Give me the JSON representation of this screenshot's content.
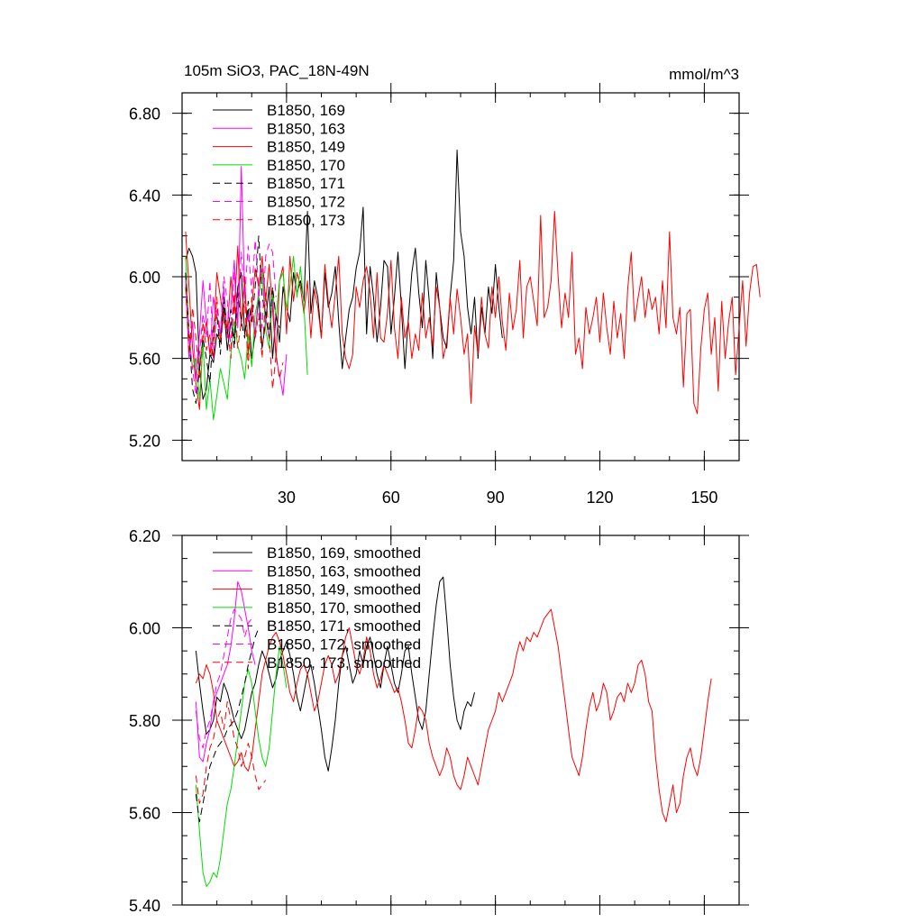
{
  "chart_data": [
    {
      "type": "line",
      "title": "105m SiO3, PAC_18N-49N",
      "units": "mmol/m^3",
      "xlim": [
        0,
        160
      ],
      "ylim": [
        5.1,
        6.9
      ],
      "x_ticks": [
        30,
        60,
        90,
        120,
        150
      ],
      "x_tick_labels": [
        "30",
        "60",
        "90",
        "120",
        "150"
      ],
      "y_ticks": [
        5.2,
        5.6,
        6.0,
        6.4,
        6.8
      ],
      "y_tick_labels": [
        "5.20",
        "5.60",
        "6.00",
        "6.40",
        "6.80"
      ],
      "legend_position": "top-left",
      "series": [
        {
          "name": "B1850, 169",
          "color": "#000000",
          "dash": "solid",
          "x0": 1,
          "values": [
            6.08,
            6.14,
            6.1,
            6.02,
            5.55,
            5.4,
            5.45,
            5.62,
            5.58,
            5.72,
            5.68,
            5.85,
            5.64,
            5.78,
            5.7,
            5.95,
            6.02,
            5.72,
            5.84,
            5.6,
            5.72,
            5.9,
            5.65,
            5.78,
            5.95,
            5.6,
            5.82,
            5.68,
            5.95,
            5.85,
            5.78,
            6.02,
            5.92,
            5.98,
            5.88,
            6.32,
            5.82,
            5.98,
            5.9,
            5.7,
            6.02,
            5.85,
            5.92,
            6.05,
            5.78,
            5.55,
            5.7,
            5.84,
            5.9,
            6.04,
            6.12,
            6.34,
            5.72,
            6.05,
            5.9,
            5.68,
            5.85,
            6.08,
            6.05,
            5.72,
            5.9,
            6.12,
            5.85,
            5.55,
            5.8,
            6.02,
            6.14,
            5.92,
            5.75,
            6.08,
            5.88,
            5.6,
            6.02,
            5.85,
            5.7,
            5.65,
            5.9,
            6.08,
            6.62,
            6.22,
            6.1,
            5.85,
            5.72,
            5.9,
            5.6,
            5.85,
            5.72,
            5.95,
            5.82,
            6.06,
            5.85,
            5.7
          ]
        },
        {
          "name": "B1850, 163",
          "color": "#ff00ff",
          "dash": "solid",
          "x0": 1,
          "values": [
            6.0,
            5.6,
            5.78,
            5.5,
            5.72,
            5.98,
            5.78,
            5.62,
            5.9,
            5.8,
            5.72,
            5.95,
            5.7,
            5.85,
            6.08,
            5.75,
            6.54,
            5.9,
            5.78,
            5.85,
            5.7,
            5.95,
            6.04,
            5.8,
            5.7,
            5.92,
            5.6,
            5.52,
            5.42,
            5.62
          ]
        },
        {
          "name": "B1850, 149",
          "color": "#ff0000",
          "dash": "solid",
          "x0": 1,
          "values": [
            6.22,
            5.95,
            5.65,
            5.48,
            5.35,
            5.7,
            5.78,
            5.62,
            5.7,
            6.02,
            5.9,
            5.78,
            5.74,
            6.0,
            5.82,
            6.15,
            5.76,
            6.0,
            5.62,
            5.85,
            6.04,
            5.95,
            6.1,
            5.88,
            6.06,
            5.84,
            5.6,
            5.98,
            6.05,
            5.72,
            6.1,
            5.88,
            6.02,
            5.95,
            5.82,
            5.98,
            5.7,
            5.94,
            5.85,
            5.7,
            6.06,
            5.88,
            5.75,
            5.92,
            6.1,
            5.72,
            5.6,
            5.55,
            5.62,
            5.95,
            5.85,
            5.98,
            6.05,
            5.92,
            5.7,
            6.02,
            5.7,
            5.68,
            5.82,
            6.08,
            5.75,
            5.6,
            5.9,
            5.7,
            5.78,
            5.6,
            5.72,
            5.64,
            5.92,
            5.7,
            5.8,
            5.66,
            5.95,
            5.85,
            5.6,
            5.68,
            5.9,
            5.72,
            5.94,
            5.8,
            5.62,
            5.72,
            5.38,
            5.76,
            5.62,
            5.9,
            5.72,
            5.65,
            5.95,
            5.8,
            6.0,
            5.78,
            5.64,
            5.92,
            5.74,
            5.84,
            6.08,
            5.7,
            5.95,
            6.0,
            5.88,
            5.76,
            6.3,
            5.8,
            5.85,
            5.98,
            6.32,
            6.0,
            5.75,
            5.92,
            5.8,
            6.12,
            5.62,
            5.7,
            5.55,
            5.85,
            5.72,
            5.8,
            5.9,
            5.68,
            5.92,
            5.75,
            5.62,
            5.88,
            5.7,
            5.82,
            5.6,
            5.94,
            6.12,
            5.78,
            5.9,
            6.0,
            5.8,
            5.94,
            5.84,
            5.9,
            5.72,
            5.98,
            5.75,
            6.22,
            5.8,
            5.72,
            5.85,
            5.46,
            5.82,
            5.84,
            5.38,
            5.33,
            5.65,
            5.84,
            5.92,
            5.62,
            5.8,
            5.44,
            5.88,
            5.6,
            5.78,
            5.9,
            5.52,
            5.75,
            5.98,
            5.66,
            5.92,
            6.05,
            6.06,
            5.9
          ]
        },
        {
          "name": "B1850, 170",
          "color": "#00dd00",
          "dash": "solid",
          "x0": 1,
          "values": [
            6.1,
            5.72,
            5.55,
            5.6,
            5.4,
            5.68,
            5.35,
            5.5,
            5.3,
            5.42,
            5.55,
            5.48,
            5.4,
            5.62,
            5.78,
            5.66,
            5.6,
            5.5,
            5.72,
            5.56,
            5.82,
            5.9,
            6.02,
            5.74,
            5.65,
            5.92,
            5.8,
            5.98,
            6.02,
            5.84,
            5.95,
            6.1,
            5.9,
            6.05,
            5.86,
            5.52
          ]
        },
        {
          "name": "B1850, 171",
          "color": "#000000",
          "dash": "8,5",
          "x0": 1,
          "values": [
            6.02,
            5.72,
            5.45,
            5.38,
            5.55,
            5.7,
            5.6,
            5.48,
            5.75,
            5.82,
            5.62,
            5.9,
            5.72,
            5.84,
            5.65,
            5.92,
            5.78,
            5.7,
            5.88,
            5.78,
            5.95,
            6.2,
            5.9,
            5.82,
            5.7,
            5.95,
            5.8,
            5.75
          ]
        },
        {
          "name": "B1850, 172",
          "color": "#ff00ff",
          "dash": "8,5",
          "x0": 1,
          "values": [
            5.98,
            5.7,
            5.55,
            5.42,
            5.62,
            5.82,
            5.7,
            5.98,
            5.6,
            5.85,
            5.72,
            6.0,
            5.88,
            5.65,
            6.02,
            5.8,
            6.12,
            5.9,
            6.15,
            5.92,
            6.18,
            5.95,
            5.75,
            6.1,
            6.16,
            6.12,
            5.9
          ]
        },
        {
          "name": "B1850, 173",
          "color": "#ff0000",
          "dash": "8,5",
          "x0": 1,
          "values": [
            5.95,
            5.62,
            5.85,
            5.7,
            5.5,
            5.78,
            5.64,
            5.72,
            5.6,
            5.9,
            5.68,
            5.82,
            5.75,
            5.6,
            5.92,
            5.65,
            5.78,
            5.88,
            5.55,
            5.9,
            5.7,
            5.82,
            5.6,
            5.92,
            5.72,
            5.45,
            5.62,
            5.5,
            5.58
          ]
        }
      ]
    },
    {
      "type": "line",
      "title": "",
      "xlim": [
        0,
        160
      ],
      "ylim": [
        5.4,
        6.2
      ],
      "x_ticks": [
        30,
        60,
        90,
        120,
        150
      ],
      "x_tick_labels": [],
      "y_ticks": [
        5.4,
        5.6,
        5.8,
        6.0,
        6.2
      ],
      "y_tick_labels": [
        "5.40",
        "5.60",
        "5.80",
        "6.00",
        "6.20"
      ],
      "legend_position": "top-left",
      "series": [
        {
          "name": "B1850, 169, smoothed",
          "color": "#000000",
          "dash": "solid",
          "x0": 4,
          "values": [
            5.95,
            5.88,
            5.82,
            5.77,
            5.78,
            5.8,
            5.85,
            5.84,
            5.88,
            5.86,
            5.83,
            5.8,
            5.78,
            5.76,
            5.78,
            5.82,
            5.86,
            5.88,
            5.92,
            5.95,
            5.93,
            5.9,
            5.87,
            5.89,
            5.93,
            5.95,
            5.97,
            5.94,
            5.9,
            5.85,
            5.82,
            5.86,
            5.9,
            5.92,
            5.88,
            5.83,
            5.78,
            5.72,
            5.69,
            5.74,
            5.8,
            5.88,
            5.94,
            5.96,
            5.92,
            5.88,
            5.9,
            5.95,
            5.92,
            5.96,
            5.98,
            5.94,
            5.9,
            5.87,
            5.92,
            5.96,
            5.92,
            5.88,
            5.86,
            5.9,
            5.95,
            5.96,
            5.9,
            5.85,
            5.8,
            5.78,
            5.82,
            5.9,
            5.98,
            6.05,
            6.1,
            6.11,
            6.02,
            5.92,
            5.85,
            5.8,
            5.78,
            5.82,
            5.84,
            5.83,
            5.86
          ]
        },
        {
          "name": "B1850, 163, smoothed",
          "color": "#ff00ff",
          "dash": "solid",
          "x0": 4,
          "values": [
            5.84,
            5.72,
            5.71,
            5.75,
            5.78,
            5.84,
            5.86,
            5.88,
            5.9,
            5.92,
            5.96,
            6.02,
            6.1,
            6.08,
            6.04,
            6.0,
            5.95,
            5.92
          ]
        },
        {
          "name": "B1850, 149, smoothed",
          "color": "#ff0000",
          "dash": "solid",
          "x0": 4,
          "values": [
            5.88,
            5.9,
            5.89,
            5.92,
            5.9,
            5.86,
            5.8,
            5.78,
            5.76,
            5.74,
            5.72,
            5.7,
            5.71,
            5.73,
            5.7,
            5.69,
            5.72,
            5.78,
            5.84,
            5.9,
            5.93,
            5.96,
            5.98,
            5.99,
            5.97,
            5.94,
            5.9,
            5.86,
            5.84,
            5.88,
            5.91,
            5.92,
            5.9,
            5.86,
            5.82,
            5.84,
            5.88,
            5.92,
            5.94,
            5.92,
            5.88,
            5.9,
            5.94,
            5.98,
            6.0,
            5.96,
            5.92,
            5.9,
            5.93,
            5.98,
            5.95,
            5.9,
            5.87,
            5.89,
            5.92,
            5.9,
            5.88,
            5.86,
            5.87,
            5.84,
            5.8,
            5.75,
            5.74,
            5.78,
            5.83,
            5.82,
            5.8,
            5.75,
            5.72,
            5.7,
            5.68,
            5.7,
            5.74,
            5.72,
            5.68,
            5.66,
            5.65,
            5.68,
            5.72,
            5.7,
            5.68,
            5.66,
            5.7,
            5.74,
            5.78,
            5.8,
            5.82,
            5.86,
            5.84,
            5.86,
            5.88,
            5.9,
            5.94,
            5.97,
            5.95,
            5.98,
            5.97,
            5.99,
            5.98,
            6.0,
            6.02,
            6.03,
            6.04,
            6.0,
            5.96,
            5.9,
            5.84,
            5.78,
            5.72,
            5.7,
            5.68,
            5.72,
            5.78,
            5.83,
            5.86,
            5.82,
            5.84,
            5.88,
            5.86,
            5.8,
            5.82,
            5.85,
            5.86,
            5.84,
            5.88,
            5.86,
            5.88,
            5.92,
            5.93,
            5.9,
            5.84,
            5.82,
            5.72,
            5.65,
            5.6,
            5.58,
            5.62,
            5.66,
            5.6,
            5.62,
            5.68,
            5.72,
            5.74,
            5.7,
            5.68,
            5.72,
            5.78,
            5.84,
            5.89
          ]
        },
        {
          "name": "B1850, 170, smoothed",
          "color": "#00dd00",
          "dash": "solid",
          "x0": 4,
          "values": [
            5.66,
            5.56,
            5.47,
            5.44,
            5.45,
            5.47,
            5.46,
            5.5,
            5.56,
            5.62,
            5.65,
            5.7,
            5.76,
            5.82,
            5.88,
            5.91,
            5.88,
            5.82,
            5.76,
            5.72,
            5.7,
            5.74,
            5.82,
            5.9,
            5.96,
            5.92,
            5.87
          ]
        },
        {
          "name": "B1850, 171, smoothed",
          "color": "#000000",
          "dash": "8,5",
          "x0": 4,
          "values": [
            5.64,
            5.58,
            5.62,
            5.66,
            5.7,
            5.72,
            5.74,
            5.75,
            5.76,
            5.78,
            5.79,
            5.8,
            5.82,
            5.85,
            5.88,
            5.92,
            5.95,
            5.98,
            6.0
          ]
        },
        {
          "name": "B1850, 172, smoothed",
          "color": "#ff00ff",
          "dash": "8,5",
          "x0": 4,
          "values": [
            5.82,
            5.76,
            5.74,
            5.78,
            5.8,
            5.84,
            5.88,
            5.9,
            5.94,
            5.98,
            6.02,
            6.04,
            6.03,
            6.02,
            5.98,
            6.01,
            6.02
          ]
        },
        {
          "name": "B1850, 173, smoothed",
          "color": "#ff0000",
          "dash": "8,5",
          "x0": 4,
          "values": [
            5.68,
            5.62,
            5.64,
            5.7,
            5.74,
            5.76,
            5.8,
            5.82,
            5.78,
            5.84,
            5.8,
            5.76,
            5.74,
            5.7,
            5.72,
            5.75,
            5.72,
            5.68,
            5.65,
            5.66,
            5.67
          ]
        }
      ]
    }
  ]
}
